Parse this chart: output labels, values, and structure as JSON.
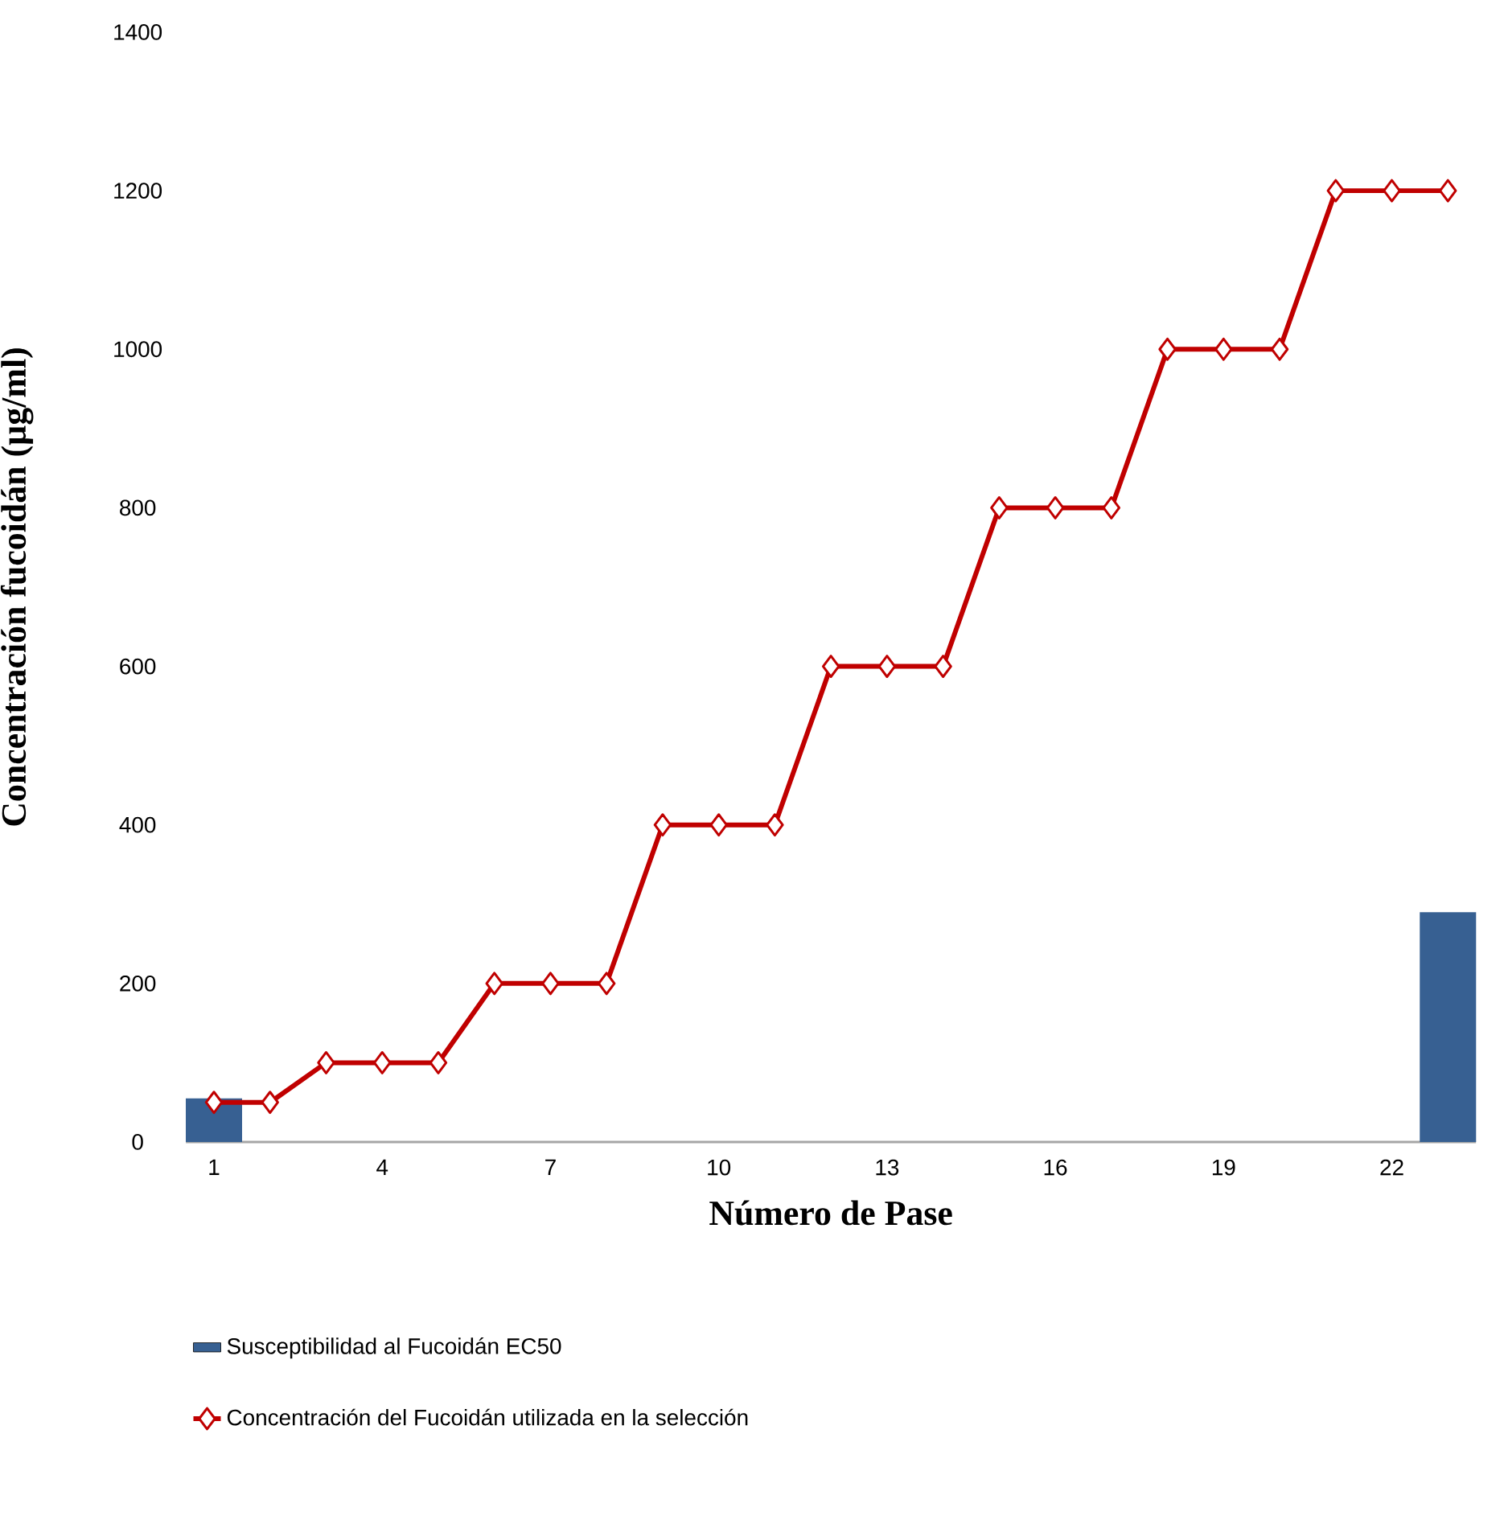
{
  "chart_data": {
    "type": "bar",
    "xlabel": "Número de Pase",
    "ylabel": "Concentración fucoidán (µg/ml)",
    "categories": [
      "1",
      null,
      null,
      "4",
      null,
      null,
      "7",
      null,
      null,
      "10",
      null,
      null,
      "13",
      null,
      null,
      "16",
      null,
      null,
      "19",
      null,
      null,
      "22",
      null
    ],
    "series": [
      {
        "name": "Susceptibilidad al Fucoidán EC50",
        "color": "#376092",
        "values": [
          55,
          null,
          null,
          null,
          null,
          null,
          null,
          null,
          null,
          null,
          null,
          null,
          null,
          null,
          null,
          null,
          null,
          null,
          null,
          null,
          null,
          null,
          290
        ]
      },
      {
        "name": "Concentración del Fucoidán utilizada en la selección",
        "type": "line",
        "color": "#c00000",
        "marker": "diamond",
        "values": [
          50,
          50,
          100,
          100,
          100,
          200,
          200,
          200,
          400,
          400,
          400,
          600,
          600,
          600,
          800,
          800,
          800,
          1000,
          1000,
          1000,
          1200,
          1200,
          1200
        ]
      }
    ],
    "ylim": [
      0,
      1400
    ],
    "yticks": [
      0,
      200,
      400,
      600,
      800,
      1000,
      1200,
      1400
    ],
    "grid": false,
    "legend": "bottom"
  }
}
